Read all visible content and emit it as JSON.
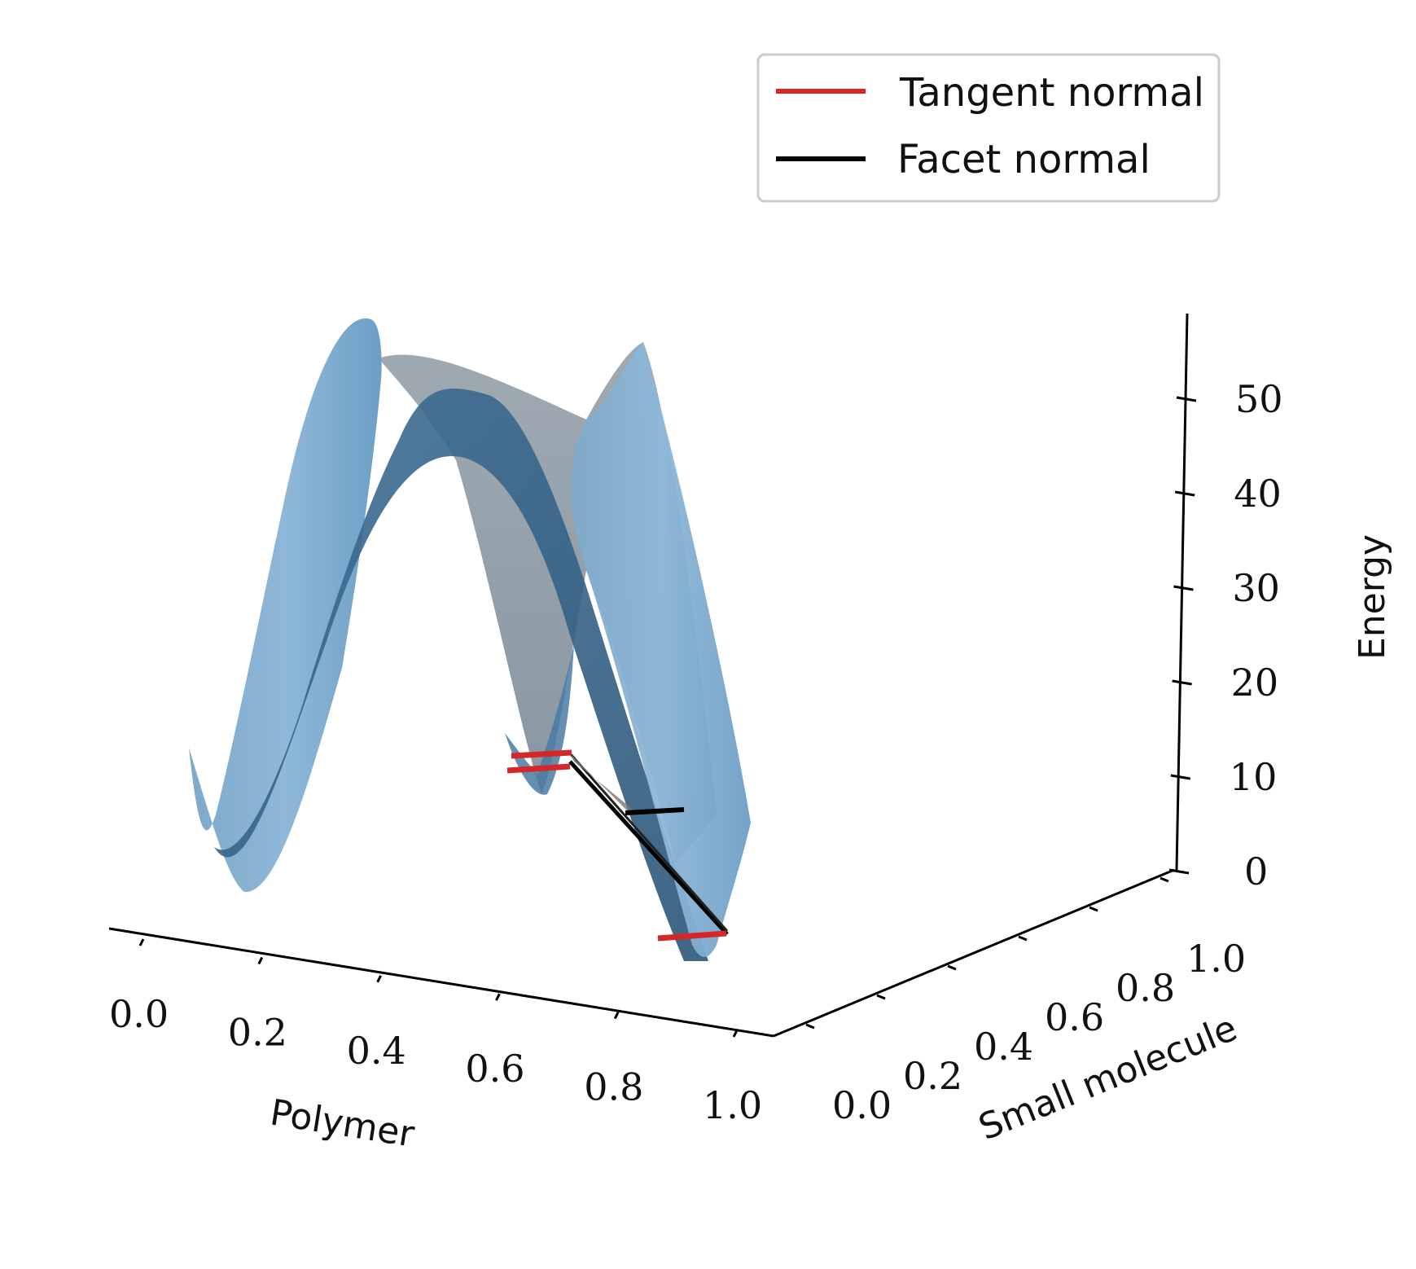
{
  "chart_data": {
    "type": "surface3d",
    "title": "",
    "xlabel": "Polymer",
    "ylabel": "Small molecule",
    "zlabel": "Energy",
    "xlim": [
      0.0,
      1.0
    ],
    "ylim": [
      0.0,
      1.0
    ],
    "zlim": [
      0,
      55
    ],
    "x_ticks": [
      "0.0",
      "0.2",
      "0.4",
      "0.6",
      "0.8",
      "1.0"
    ],
    "y_ticks": [
      "0.0",
      "0.2",
      "0.4",
      "0.6",
      "0.8",
      "1.0"
    ],
    "z_ticks": [
      "0",
      "10",
      "20",
      "30",
      "40",
      "50"
    ],
    "surface": {
      "name": "Energy surface",
      "description": "double-well energy surface with wells near Polymer 0.1 and 0.9",
      "color": "#5b9bc8"
    },
    "series": [
      {
        "name": "Tangent normal",
        "color": "#d62728"
      },
      {
        "name": "Facet normal",
        "color": "#000000"
      }
    ],
    "legend": {
      "position": "top-right",
      "entries": [
        "Tangent normal",
        "Facet normal"
      ]
    }
  }
}
